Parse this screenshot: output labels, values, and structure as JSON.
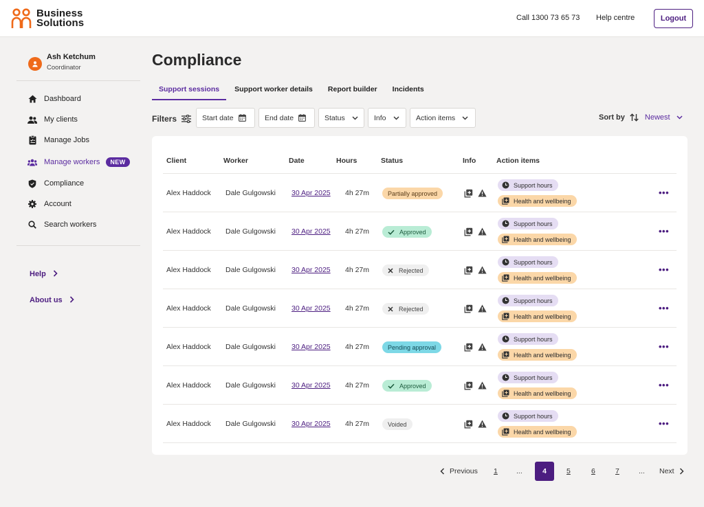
{
  "brand": {
    "line1": "Business",
    "line2": "Solutions",
    "color": "#ef6a1a"
  },
  "header": {
    "phone": "Call 1300 73 65 73",
    "help": "Help centre",
    "logout": "Logout"
  },
  "user": {
    "name": "Ash Ketchum",
    "role": "Coordinator"
  },
  "sidebar": {
    "items": [
      {
        "label": "Dashboard",
        "icon": "home-icon"
      },
      {
        "label": "My clients",
        "icon": "people-icon"
      },
      {
        "label": "Manage Jobs",
        "icon": "clipboard-icon"
      },
      {
        "label": "Manage workers",
        "icon": "team-icon",
        "badge": "NEW",
        "active": true
      },
      {
        "label": "Compliance",
        "icon": "shield-icon"
      },
      {
        "label": "Account",
        "icon": "gear-icon"
      },
      {
        "label": "Search workers",
        "icon": "search-icon"
      }
    ],
    "links": [
      {
        "label": "Help"
      },
      {
        "label": "About us"
      }
    ]
  },
  "main": {
    "title": "Compliance",
    "tabs": [
      {
        "label": "Support sessions",
        "active": true
      },
      {
        "label": "Support worker details"
      },
      {
        "label": "Report builder"
      },
      {
        "label": "Incidents"
      }
    ],
    "filters": {
      "label": "Filters",
      "start_date": "Start date",
      "end_date": "End date",
      "status": "Status",
      "info": "Info",
      "action_items": "Action items"
    },
    "sort": {
      "label": "Sort by",
      "value": "Newest"
    }
  },
  "table": {
    "columns": [
      "Client",
      "Worker",
      "Date",
      "Hours",
      "Status",
      "Info",
      "Action items"
    ],
    "action_labels": {
      "support": "Support hours",
      "health": "Health and wellbeing"
    },
    "more": "•••",
    "rows": [
      {
        "client": "Alex Haddock",
        "worker": "Dale Gulgowski",
        "date": "30 Apr 2025",
        "hours": "4h 27m",
        "status": "Partially approved",
        "status_key": "partial"
      },
      {
        "client": "Alex Haddock",
        "worker": "Dale Gulgowski",
        "date": "30 Apr 2025",
        "hours": "4h 27m",
        "status": "Approved",
        "status_key": "approved"
      },
      {
        "client": "Alex Haddock",
        "worker": "Dale Gulgowski",
        "date": "30 Apr 2025",
        "hours": "4h 27m",
        "status": "Rejected",
        "status_key": "rejected"
      },
      {
        "client": "Alex Haddock",
        "worker": "Dale Gulgowski",
        "date": "30 Apr 2025",
        "hours": "4h 27m",
        "status": "Rejected",
        "status_key": "rejected"
      },
      {
        "client": "Alex Haddock",
        "worker": "Dale Gulgowski",
        "date": "30 Apr 2025",
        "hours": "4h 27m",
        "status": "Pending approval",
        "status_key": "pending"
      },
      {
        "client": "Alex Haddock",
        "worker": "Dale Gulgowski",
        "date": "30 Apr 2025",
        "hours": "4h 27m",
        "status": "Approved",
        "status_key": "approved"
      },
      {
        "client": "Alex Haddock",
        "worker": "Dale Gulgowski",
        "date": "30 Apr 2025",
        "hours": "4h 27m",
        "status": "Voided",
        "status_key": "voided"
      }
    ]
  },
  "pagination": {
    "previous": "Previous",
    "next": "Next",
    "pages": [
      "1",
      "...",
      "4",
      "5",
      "6",
      "7",
      "..."
    ],
    "current": "4"
  },
  "colors": {
    "accent": "#4c1d80",
    "brand_orange": "#ef6a1a"
  }
}
